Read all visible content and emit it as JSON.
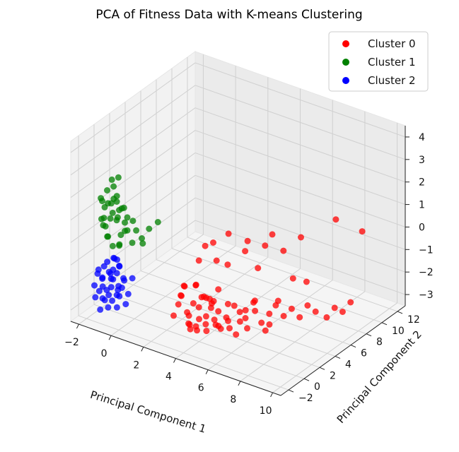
{
  "chart_data": {
    "type": "scatter",
    "title": "PCA of Fitness Data with K-means Clustering",
    "xlabel": "Principal Component 1",
    "ylabel": "Principal Component 2",
    "zlabel": "",
    "xlim": [
      -2.5,
      10.5
    ],
    "ylim": [
      -3,
      13
    ],
    "zlim": [
      -3.5,
      4.5
    ],
    "x_ticks": [
      "−2",
      "0",
      "2",
      "4",
      "6",
      "8",
      "10"
    ],
    "y_ticks": [
      "−2",
      "0",
      "2",
      "4",
      "6",
      "8",
      "10",
      "12"
    ],
    "z_ticks": [
      "−3",
      "−2",
      "−1",
      "0",
      "1",
      "2",
      "3",
      "4"
    ],
    "grid": true,
    "legend_position": "top-right",
    "series": [
      {
        "name": "Cluster 0",
        "color": "#ff0000",
        "points": [
          [
            3.5,
            -0.5,
            -2.2
          ],
          [
            4.0,
            0.0,
            -2.5
          ],
          [
            3.2,
            -1.0,
            -1.8
          ],
          [
            4.5,
            0.5,
            -2.0
          ],
          [
            3.8,
            -0.8,
            -2.6
          ],
          [
            4.2,
            0.2,
            -1.5
          ],
          [
            3.0,
            -1.2,
            -2.3
          ],
          [
            4.6,
            -0.3,
            -2.8
          ],
          [
            3.6,
            0.4,
            -1.2
          ],
          [
            4.1,
            -0.6,
            -0.8
          ],
          [
            3.3,
            0.1,
            -2.9
          ],
          [
            4.4,
            0.8,
            -1.9
          ],
          [
            3.9,
            -1.1,
            -2.1
          ],
          [
            4.8,
            0.3,
            -2.4
          ],
          [
            3.1,
            -0.4,
            -1.6
          ],
          [
            4.3,
            -0.9,
            -2.7
          ],
          [
            3.7,
            0.6,
            -2.2
          ],
          [
            4.7,
            -0.1,
            -1.4
          ],
          [
            3.4,
            -0.7,
            -1.0
          ],
          [
            4.0,
            0.9,
            -2.6
          ],
          [
            5.0,
            0.4,
            -2.0
          ],
          [
            5.3,
            0.8,
            -2.3
          ],
          [
            5.6,
            1.2,
            -1.8
          ],
          [
            5.2,
            0.0,
            -2.5
          ],
          [
            5.8,
            1.5,
            -2.1
          ],
          [
            5.5,
            0.6,
            -1.6
          ],
          [
            6.0,
            1.8,
            -2.4
          ],
          [
            5.4,
            1.0,
            -2.8
          ],
          [
            6.2,
            1.4,
            -1.9
          ],
          [
            5.7,
            0.2,
            -2.2
          ],
          [
            6.5,
            2.0,
            -2.0
          ],
          [
            6.3,
            2.4,
            -1.7
          ],
          [
            6.8,
            2.2,
            -2.5
          ],
          [
            6.6,
            1.6,
            -1.5
          ],
          [
            7.0,
            2.8,
            -2.2
          ],
          [
            6.9,
            2.5,
            -2.9
          ],
          [
            7.3,
            3.0,
            -1.8
          ],
          [
            7.1,
            2.6,
            -2.6
          ],
          [
            7.6,
            3.4,
            -2.3
          ],
          [
            7.4,
            3.1,
            -1.6
          ],
          [
            7.9,
            3.8,
            -2.0
          ],
          [
            8.2,
            4.2,
            -2.4
          ],
          [
            8.5,
            4.6,
            -1.9
          ],
          [
            8.8,
            5.0,
            -2.2
          ],
          [
            9.2,
            5.6,
            -2.5
          ],
          [
            9.5,
            6.0,
            -2.1
          ],
          [
            9.8,
            6.4,
            -2.3
          ],
          [
            10.1,
            6.8,
            -1.9
          ],
          [
            8.0,
            5.5,
            -1.2
          ],
          [
            7.5,
            4.8,
            -1.0
          ],
          [
            6.4,
            3.5,
            0.5
          ],
          [
            7.2,
            4.2,
            0.3
          ],
          [
            5.8,
            2.5,
            0.8
          ],
          [
            6.7,
            3.8,
            1.0
          ],
          [
            5.1,
            1.5,
            1.2
          ],
          [
            5.5,
            2.8,
            0.2
          ],
          [
            6.1,
            3.2,
            -0.5
          ],
          [
            4.6,
            1.0,
            0.0
          ],
          [
            4.9,
            1.8,
            -0.3
          ],
          [
            3.8,
            1.2,
            0.4
          ],
          [
            3.6,
            0.8,
            -0.2
          ],
          [
            4.2,
            1.4,
            0.6
          ],
          [
            7.8,
            5.2,
            0.8
          ],
          [
            9.0,
            7.2,
            1.4
          ],
          [
            10.0,
            8.5,
            0.8
          ],
          [
            3.3,
            -0.9,
            -1.4
          ],
          [
            3.9,
            -0.2,
            -2.8
          ],
          [
            4.4,
            -0.5,
            -1.3
          ],
          [
            5.9,
            0.8,
            -2.9
          ],
          [
            6.4,
            1.2,
            -2.6
          ],
          [
            3.5,
            0.3,
            -2.0
          ],
          [
            4.1,
            0.7,
            -1.7
          ],
          [
            4.7,
            -0.6,
            -2.4
          ],
          [
            5.2,
            0.3,
            -2.7
          ],
          [
            3.2,
            -0.2,
            -1.2
          ],
          [
            4.5,
            1.1,
            -2.9
          ],
          [
            6.1,
            0.9,
            -2.3
          ],
          [
            5.0,
            -0.2,
            -1.4
          ],
          [
            3.7,
            -0.5,
            -2.9
          ],
          [
            4.9,
            0.6,
            -1.1
          ]
        ]
      },
      {
        "name": "Cluster 1",
        "color": "#008000",
        "points": [
          [
            -1.2,
            -0.6,
            0.8
          ],
          [
            -0.8,
            -0.3,
            1.2
          ],
          [
            -1.5,
            -0.9,
            0.5
          ],
          [
            -1.0,
            -0.2,
            1.5
          ],
          [
            -0.6,
            -0.5,
            0.2
          ],
          [
            -1.3,
            -0.1,
            0.9
          ],
          [
            -0.9,
            -0.8,
            1.8
          ],
          [
            -1.6,
            -0.4,
            0.3
          ],
          [
            -0.7,
            -0.7,
            1.0
          ],
          [
            -1.1,
            0.0,
            0.6
          ],
          [
            -1.4,
            -0.5,
            1.4
          ],
          [
            -0.5,
            -0.2,
            0.7
          ],
          [
            -1.2,
            -1.0,
            0.1
          ],
          [
            -0.8,
            -0.6,
            1.9
          ],
          [
            -1.7,
            -0.3,
            1.1
          ],
          [
            -0.4,
            -0.4,
            0.4
          ],
          [
            -1.0,
            -0.9,
            1.6
          ],
          [
            -1.3,
            -0.7,
            0.0
          ],
          [
            -0.6,
            -0.1,
            1.3
          ],
          [
            -1.5,
            -0.8,
            0.8
          ],
          [
            -0.3,
            -0.3,
            1.0
          ],
          [
            -0.2,
            -0.5,
            0.5
          ],
          [
            0.0,
            -0.2,
            0.9
          ],
          [
            0.3,
            -0.4,
            0.6
          ],
          [
            0.6,
            -0.3,
            0.3
          ],
          [
            -1.1,
            -0.4,
            2.2
          ],
          [
            -0.9,
            -0.2,
            2.6
          ],
          [
            -1.4,
            -0.6,
            2.0
          ],
          [
            -0.7,
            -0.5,
            -0.3
          ],
          [
            -1.2,
            -0.3,
            -0.5
          ],
          [
            1.0,
            -0.2,
            0.8
          ],
          [
            1.5,
            -0.1,
            1.2
          ],
          [
            0.8,
            -0.6,
            0.2
          ],
          [
            -1.8,
            -0.5,
            0.6
          ],
          [
            -1.9,
            -0.2,
            1.3
          ],
          [
            -0.5,
            -0.9,
            -0.1
          ],
          [
            0.2,
            -0.7,
            0.1
          ],
          [
            -1.6,
            -1.0,
            1.7
          ],
          [
            -0.4,
            -0.8,
            1.5
          ],
          [
            -1.3,
            -0.2,
            2.4
          ]
        ]
      },
      {
        "name": "Cluster 2",
        "color": "#0000ff",
        "points": [
          [
            -1.0,
            -1.0,
            -1.5
          ],
          [
            -0.6,
            -0.8,
            -2.0
          ],
          [
            -1.3,
            -1.2,
            -1.2
          ],
          [
            -0.8,
            -0.6,
            -2.5
          ],
          [
            -1.5,
            -1.0,
            -1.8
          ],
          [
            -0.4,
            -1.1,
            -1.0
          ],
          [
            -1.1,
            -0.7,
            -2.2
          ],
          [
            -0.7,
            -1.3,
            -1.6
          ],
          [
            -1.4,
            -0.9,
            -2.8
          ],
          [
            -0.9,
            -1.4,
            -1.3
          ],
          [
            -1.2,
            -0.5,
            -1.9
          ],
          [
            -0.5,
            -0.9,
            -2.4
          ],
          [
            -1.6,
            -1.3,
            -1.4
          ],
          [
            -0.3,
            -0.7,
            -1.7
          ],
          [
            -1.0,
            -1.5,
            -2.1
          ],
          [
            -0.6,
            -1.0,
            -2.9
          ],
          [
            -1.3,
            -0.8,
            -1.1
          ],
          [
            -0.8,
            -1.2,
            -2.6
          ],
          [
            -1.7,
            -0.6,
            -2.0
          ],
          [
            -0.2,
            -1.0,
            -1.5
          ],
          [
            -1.1,
            -1.1,
            -3.0
          ],
          [
            -0.7,
            -0.5,
            -1.2
          ],
          [
            -1.5,
            -1.4,
            -2.3
          ],
          [
            -0.4,
            -1.3,
            -2.0
          ],
          [
            -0.9,
            -0.4,
            -1.6
          ],
          [
            -1.8,
            -1.0,
            -1.7
          ],
          [
            -1.2,
            -1.6,
            -2.5
          ],
          [
            0.0,
            -0.8,
            -2.2
          ],
          [
            -0.6,
            -1.5,
            -1.1
          ],
          [
            -1.4,
            -0.4,
            -2.7
          ],
          [
            -0.8,
            -0.9,
            -0.8
          ],
          [
            -1.0,
            -0.6,
            -0.9
          ],
          [
            -0.5,
            -1.2,
            -0.7
          ],
          [
            -1.9,
            -1.2,
            -2.2
          ],
          [
            -0.1,
            -1.4,
            -1.8
          ],
          [
            -1.3,
            -1.7,
            -3.0
          ],
          [
            0.3,
            -0.9,
            -1.4
          ],
          [
            -1.7,
            -1.5,
            -2.6
          ],
          [
            -0.3,
            -0.5,
            -2.8
          ],
          [
            -1.1,
            -1.8,
            -1.9
          ]
        ]
      }
    ]
  }
}
